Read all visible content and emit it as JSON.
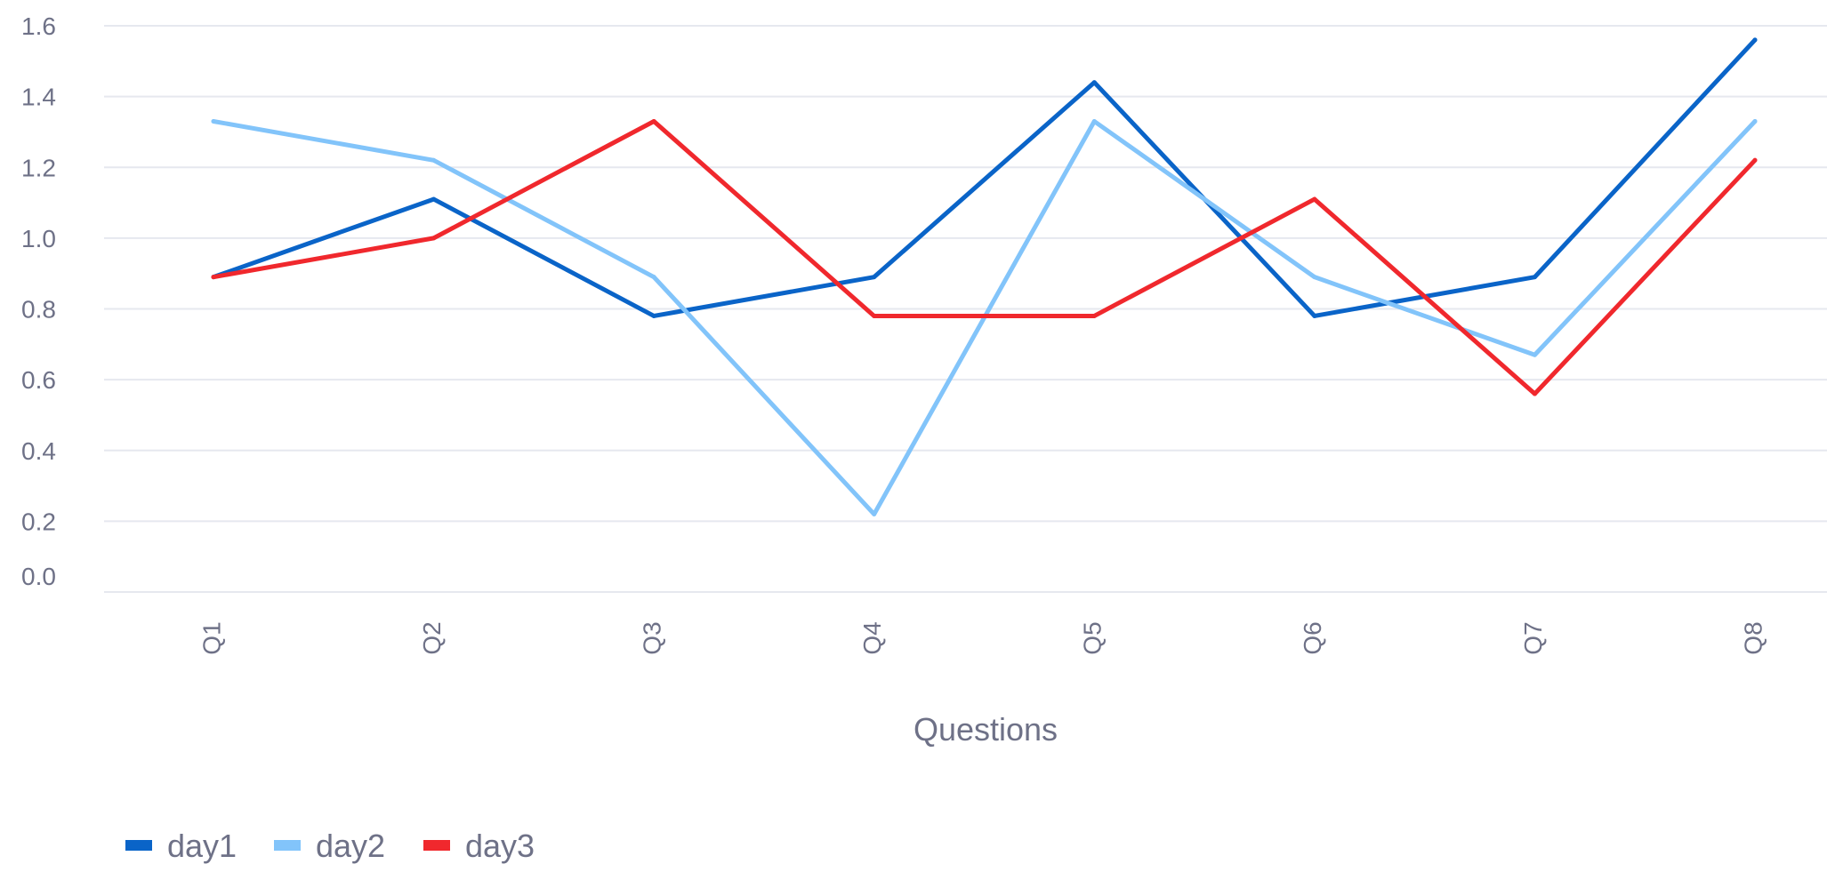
{
  "chart_data": {
    "type": "line",
    "xlabel": "Questions",
    "ylabel": "",
    "ylim": [
      0,
      1.6
    ],
    "yticks": [
      "0.0",
      "0.2",
      "0.4",
      "0.6",
      "0.8",
      "1.0",
      "1.2",
      "1.4",
      "1.6"
    ],
    "grid": true,
    "legend_position": "bottom-left",
    "categories": [
      "Q1",
      "Q2",
      "Q3",
      "Q4",
      "Q5",
      "Q6",
      "Q7",
      "Q8"
    ],
    "series": [
      {
        "name": "day1",
        "color": "#0a64c8",
        "values": [
          0.89,
          1.11,
          0.78,
          0.89,
          1.44,
          0.78,
          0.89,
          1.56
        ]
      },
      {
        "name": "day2",
        "color": "#82c4fa",
        "values": [
          1.33,
          1.22,
          0.89,
          0.22,
          1.33,
          0.89,
          0.67,
          1.33
        ]
      },
      {
        "name": "day3",
        "color": "#f0282d",
        "values": [
          0.89,
          1.0,
          1.33,
          0.78,
          0.78,
          1.11,
          0.56,
          1.22
        ]
      }
    ]
  }
}
